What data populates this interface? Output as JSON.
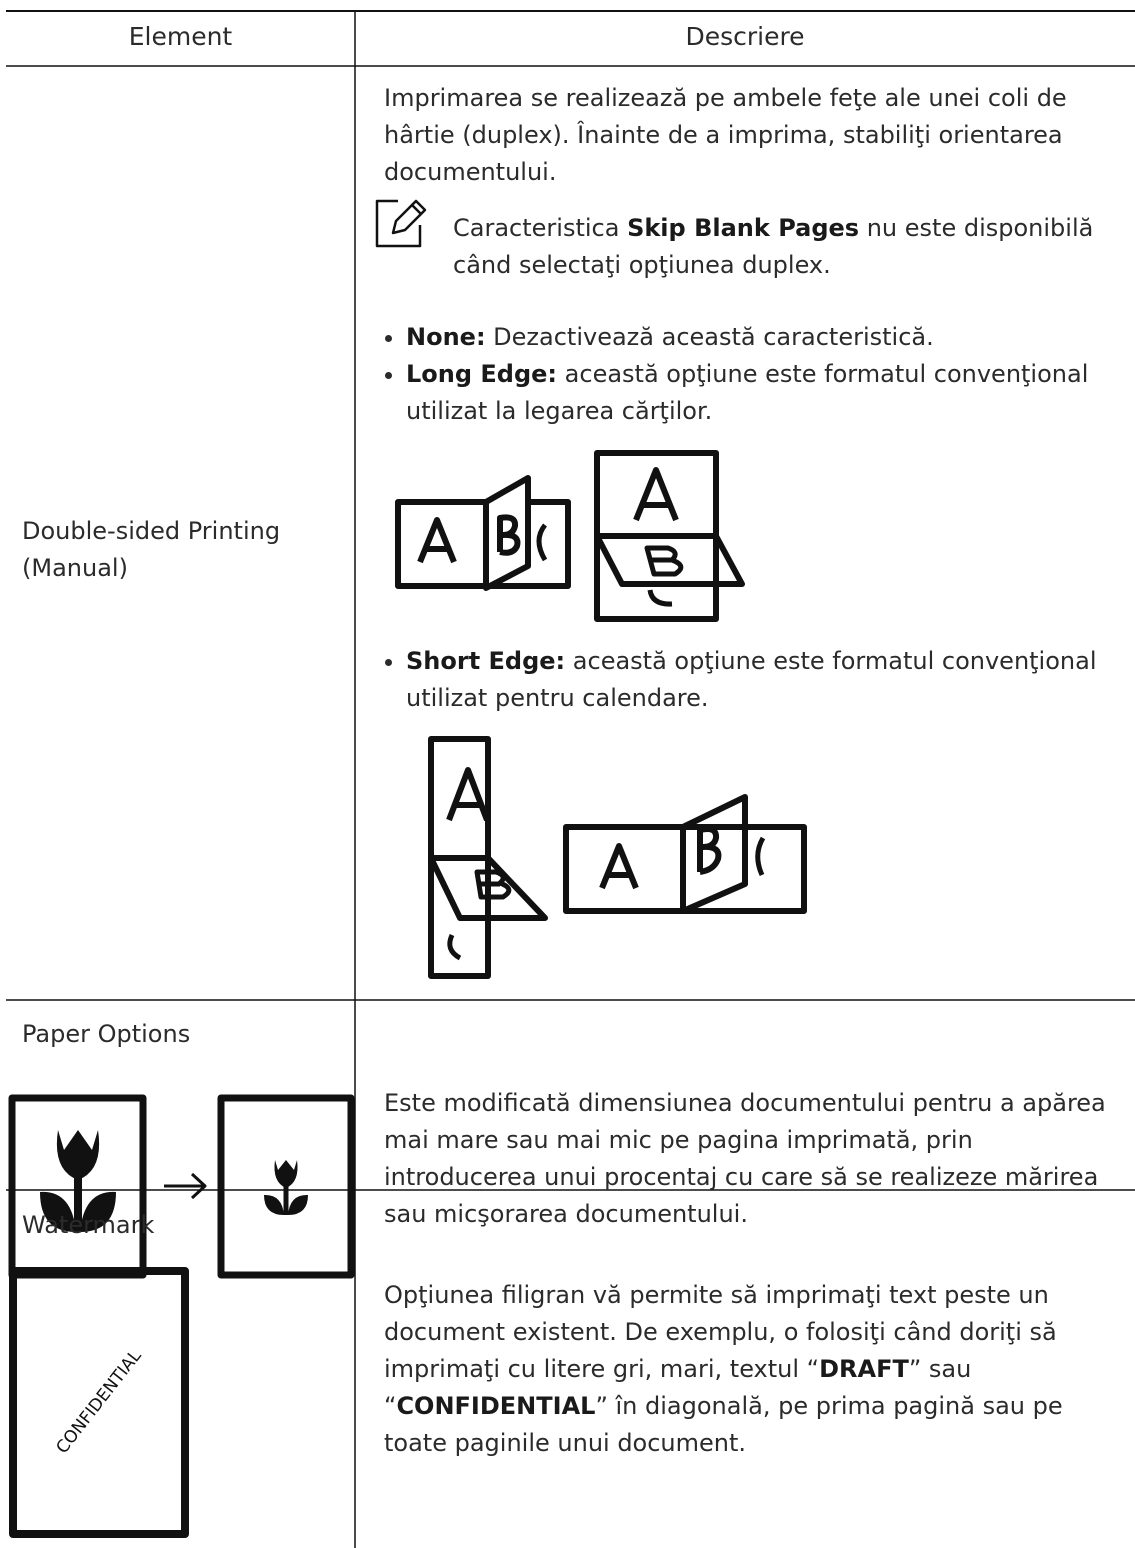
{
  "table": {
    "header": [
      "Element",
      "Descriere"
    ],
    "rows": [
      {
        "element": "Double-sided Printing (Manual)",
        "intro": "Imprimarea se realizează pe ambele feţe ale unei coli de hârtie (duplex). Înainte de a imprima, stabiliţi orientarea documentului.",
        "note": [
          "Caracteristica ",
          "Skip Blank Pages",
          " nu este disponibilă când selectaţi opţiunea duplex."
        ],
        "bullets": [
          {
            "term": "None:",
            "text": " Dezactivează această caracteristică."
          },
          {
            "term": "Long Edge:",
            "text": " această opţiune este formatul convenţional utilizat la legarea cărţilor."
          },
          {
            "term": "Short Edge:",
            "text": " această opţiune este formatul convenţional utilizat pentru calendare."
          }
        ]
      },
      {
        "element": "Paper Options",
        "description": "Este modificată dimensiunea documentului pentru a apărea mai mare sau mai mic pe pagina imprimată, prin introducerea unui procentaj cu care să se realizeze mărirea sau micşorarea documentului."
      },
      {
        "element": "Watermark",
        "icon_text": "CONFIDENTIAL",
        "description": [
          "Opţiunea filigran vă permite să imprimaţi text peste un document existent. De exemplu, o folosiţi când doriţi să imprimaţi cu litere gri, mari, textul “",
          "DRAFT",
          "” sau “",
          "CONFIDENTIAL",
          "” în diagonală, pe prima pagină sau pe toate paginile unui document."
        ]
      }
    ]
  }
}
